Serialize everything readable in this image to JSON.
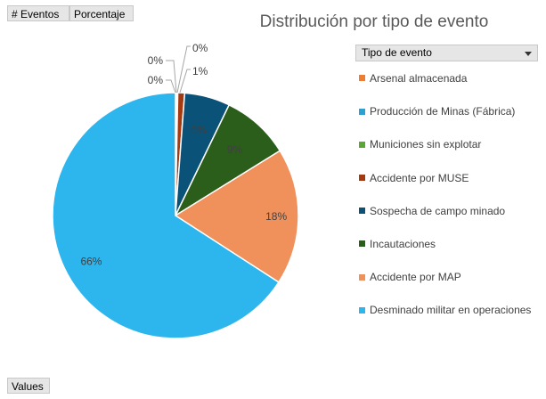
{
  "field_buttons": {
    "eventos": "# Eventos",
    "porcentaje": "Porcentaje",
    "values": "Values"
  },
  "legend_header": "Tipo de evento",
  "chart_data": {
    "type": "pie",
    "title": "Distribución por tipo de evento",
    "legend_position": "right",
    "start_angle_deg": 0,
    "slices": [
      {
        "label": "Arsenal almacenada",
        "value": 0.1,
        "data_label": "0%",
        "color": "#ED7D31"
      },
      {
        "label": "Producción de Minas (Fábrica)",
        "value": 0.1,
        "data_label": "0%",
        "color": "#2E9FD1"
      },
      {
        "label": "Municiones sin explotar",
        "value": 0.1,
        "data_label": "0%",
        "color": "#5AA832"
      },
      {
        "label": "Accidente por MUSE",
        "value": 0.9,
        "data_label": "1%",
        "color": "#A33A12"
      },
      {
        "label": "Sospecha de campo minado",
        "value": 6,
        "data_label": "6%",
        "color": "#0A5278"
      },
      {
        "label": "Incautaciones",
        "value": 9,
        "data_label": "9%",
        "color": "#2B5E1A"
      },
      {
        "label": "Accidente por MAP",
        "value": 18,
        "data_label": "18%",
        "color": "#F0905A"
      },
      {
        "label": "Desminado militar en operaciones",
        "value": 66,
        "data_label": "66%",
        "color": "#2DB5EE"
      }
    ]
  }
}
